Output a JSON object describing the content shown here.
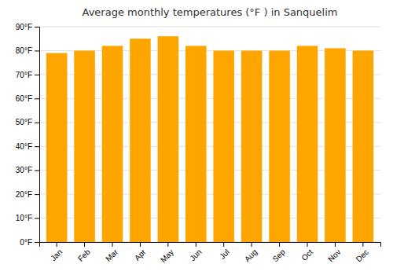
{
  "chart_data": {
    "type": "bar",
    "title": "Average monthly temperatures (°F ) in Sanquelim",
    "categories": [
      "Jan",
      "Feb",
      "Mar",
      "Apr",
      "May",
      "Jun",
      "Jul",
      "Aug",
      "Sep",
      "Oct",
      "Nov",
      "Dec"
    ],
    "values": [
      79,
      80,
      82,
      85,
      86,
      82,
      80,
      80,
      80,
      82,
      81,
      80
    ],
    "color": "#FFA500",
    "ylim": [
      0,
      90
    ],
    "yticks": [
      {
        "value": 0,
        "label": "0°F"
      },
      {
        "value": 10,
        "label": "10°F"
      },
      {
        "value": 20,
        "label": "20°F"
      },
      {
        "value": 30,
        "label": "30°F"
      },
      {
        "value": 40,
        "label": "40°F"
      },
      {
        "value": 50,
        "label": "50°F"
      },
      {
        "value": 60,
        "label": "60°F"
      },
      {
        "value": 70,
        "label": "70°F"
      },
      {
        "value": 80,
        "label": "80°F"
      },
      {
        "value": 90,
        "label": "90°F"
      }
    ],
    "grid": true
  }
}
